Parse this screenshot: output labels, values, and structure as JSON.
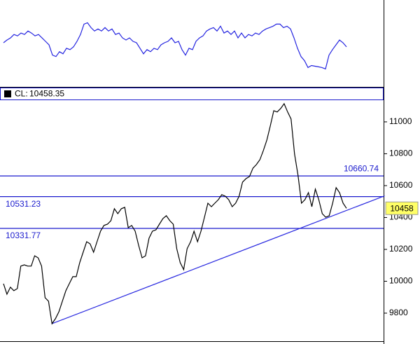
{
  "chart_data": [
    {
      "type": "line",
      "ylim": [
        0,
        125
      ],
      "series": [
        {
          "color": "#2525e0",
          "values": [
            63,
            67,
            70,
            75,
            73,
            77,
            75,
            80,
            77,
            73,
            75,
            70,
            65,
            60,
            45,
            43,
            50,
            47,
            55,
            53,
            57,
            65,
            75,
            90,
            92,
            85,
            80,
            83,
            80,
            85,
            80,
            83,
            75,
            77,
            70,
            67,
            70,
            65,
            63,
            55,
            47,
            53,
            50,
            55,
            53,
            60,
            63,
            65,
            70,
            63,
            65,
            53,
            45,
            55,
            53,
            65,
            70,
            73,
            80,
            83,
            85,
            80,
            87,
            77,
            80,
            75,
            80,
            70,
            77,
            70,
            75,
            73,
            77,
            75,
            80,
            83,
            85,
            87,
            90,
            90,
            85,
            87,
            83,
            70,
            55,
            43,
            37,
            27,
            30,
            29,
            28,
            27,
            25,
            45,
            53,
            60,
            67,
            63,
            57
          ]
        }
      ]
    },
    {
      "type": "line",
      "ylim": [
        9624,
        11136
      ],
      "yticks": [
        9800,
        10000,
        10200,
        10400,
        10600,
        10800,
        11000
      ],
      "legend": {
        "label": "CL:",
        "value": 10458.35
      },
      "last_label": 10458,
      "series": [
        {
          "color": "#000000",
          "values": [
            9985,
            9919,
            9963,
            9941,
            9954,
            10095,
            10103,
            10095,
            10095,
            10160,
            10147,
            10095,
            9897,
            9875,
            9734,
            9765,
            9809,
            9875,
            9941,
            9985,
            10029,
            10029,
            10117,
            10182,
            10248,
            10235,
            10182,
            10248,
            10314,
            10350,
            10358,
            10380,
            10455,
            10424,
            10455,
            10464,
            10336,
            10350,
            10314,
            10226,
            10147,
            10160,
            10270,
            10314,
            10323,
            10358,
            10393,
            10411,
            10380,
            10358,
            10204,
            10117,
            10073,
            10204,
            10248,
            10314,
            10248,
            10314,
            10402,
            10490,
            10468,
            10490,
            10512,
            10543,
            10534,
            10512,
            10468,
            10490,
            10534,
            10622,
            10644,
            10657,
            10710,
            10732,
            10763,
            10820,
            10886,
            10974,
            11070,
            11062,
            11084,
            11114,
            11062,
            11018,
            10798,
            10666,
            10490,
            10512,
            10556,
            10468,
            10578,
            10512,
            10424,
            10402,
            10411,
            10490,
            10587,
            10556,
            10490,
            10458
          ]
        }
      ],
      "hlines": {
        "color": "#1a1acd",
        "values": [
          10660.74,
          10531.23,
          10331.77
        ]
      },
      "trendline": {
        "color": "#2a2ae0",
        "x": [
          14,
          110
        ],
        "values": [
          9734,
          10536
        ]
      }
    }
  ]
}
